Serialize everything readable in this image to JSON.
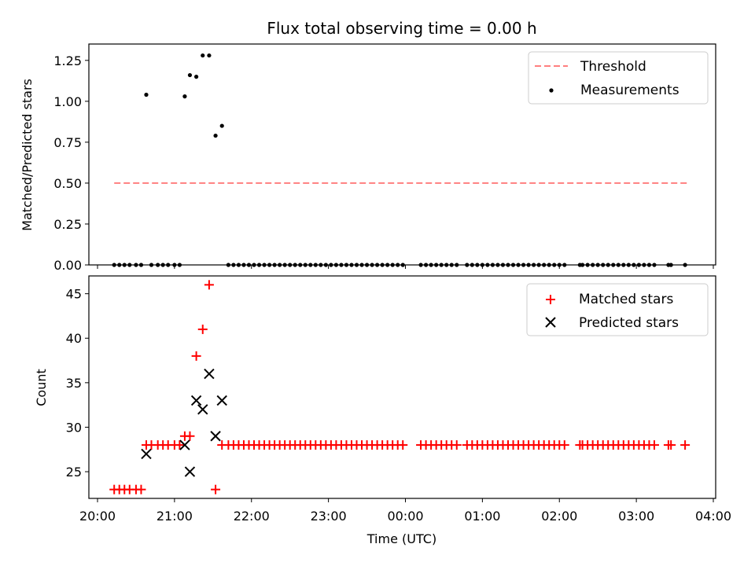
{
  "chart_data": [
    {
      "type": "scatter",
      "title": "Flux total observing time = 0.00 h",
      "xlabel": "",
      "ylabel": "Matched/Predicted stars",
      "xlim": [
        "20:00",
        "04:00"
      ],
      "ylim": [
        0,
        1.35
      ],
      "yticks": [
        "0.00",
        "0.25",
        "0.50",
        "0.75",
        "1.00",
        "1.25"
      ],
      "legend": "top-right",
      "grid": false,
      "series": [
        {
          "name": "Threshold",
          "style": "dashed-line",
          "color": "#ff7f7f",
          "points": [
            {
              "x": "20:13",
              "y": 0.5
            },
            {
              "x": "03:40",
              "y": 0.5
            }
          ]
        },
        {
          "name": "Measurements",
          "style": "dot",
          "color": "#000000",
          "points": [
            {
              "x": "20:13",
              "y": 0
            },
            {
              "x": "20:17",
              "y": 0
            },
            {
              "x": "20:21",
              "y": 0
            },
            {
              "x": "20:25",
              "y": 0
            },
            {
              "x": "20:30",
              "y": 0
            },
            {
              "x": "20:34",
              "y": 0
            },
            {
              "x": "20:38",
              "y": 1.04
            },
            {
              "x": "20:42",
              "y": 0
            },
            {
              "x": "20:47",
              "y": 0
            },
            {
              "x": "20:51",
              "y": 0
            },
            {
              "x": "20:55",
              "y": 0
            },
            {
              "x": "21:00",
              "y": 0
            },
            {
              "x": "21:04",
              "y": 0
            },
            {
              "x": "21:08",
              "y": 1.03
            },
            {
              "x": "21:12",
              "y": 1.16
            },
            {
              "x": "21:17",
              "y": 1.15
            },
            {
              "x": "21:22",
              "y": 1.28
            },
            {
              "x": "21:27",
              "y": 1.28
            },
            {
              "x": "21:32",
              "y": 0.79
            },
            {
              "x": "21:37",
              "y": 0.85
            },
            {
              "x": "21:42",
              "y": 0
            },
            {
              "x": "21:46",
              "y": 0
            },
            {
              "x": "21:50",
              "y": 0
            },
            {
              "x": "21:54",
              "y": 0
            },
            {
              "x": "21:58",
              "y": 0
            },
            {
              "x": "22:02",
              "y": 0
            },
            {
              "x": "22:06",
              "y": 0
            },
            {
              "x": "22:10",
              "y": 0
            },
            {
              "x": "22:14",
              "y": 0
            },
            {
              "x": "22:18",
              "y": 0
            },
            {
              "x": "22:22",
              "y": 0
            },
            {
              "x": "22:26",
              "y": 0
            },
            {
              "x": "22:30",
              "y": 0
            },
            {
              "x": "22:34",
              "y": 0
            },
            {
              "x": "22:38",
              "y": 0
            },
            {
              "x": "22:42",
              "y": 0
            },
            {
              "x": "22:46",
              "y": 0
            },
            {
              "x": "22:50",
              "y": 0
            },
            {
              "x": "22:54",
              "y": 0
            },
            {
              "x": "22:58",
              "y": 0
            },
            {
              "x": "23:02",
              "y": 0
            },
            {
              "x": "23:06",
              "y": 0
            },
            {
              "x": "23:10",
              "y": 0
            },
            {
              "x": "23:14",
              "y": 0
            },
            {
              "x": "23:18",
              "y": 0
            },
            {
              "x": "23:22",
              "y": 0
            },
            {
              "x": "23:26",
              "y": 0
            },
            {
              "x": "23:30",
              "y": 0
            },
            {
              "x": "23:34",
              "y": 0
            },
            {
              "x": "23:38",
              "y": 0
            },
            {
              "x": "23:42",
              "y": 0
            },
            {
              "x": "23:46",
              "y": 0
            },
            {
              "x": "23:50",
              "y": 0
            },
            {
              "x": "23:54",
              "y": 0
            },
            {
              "x": "23:58",
              "y": 0
            },
            {
              "x": "00:12",
              "y": 0
            },
            {
              "x": "00:16",
              "y": 0
            },
            {
              "x": "00:20",
              "y": 0
            },
            {
              "x": "00:24",
              "y": 0
            },
            {
              "x": "00:28",
              "y": 0
            },
            {
              "x": "00:32",
              "y": 0
            },
            {
              "x": "00:36",
              "y": 0
            },
            {
              "x": "00:40",
              "y": 0
            },
            {
              "x": "00:48",
              "y": 0
            },
            {
              "x": "00:52",
              "y": 0
            },
            {
              "x": "00:56",
              "y": 0
            },
            {
              "x": "01:00",
              "y": 0
            },
            {
              "x": "01:04",
              "y": 0
            },
            {
              "x": "01:08",
              "y": 0
            },
            {
              "x": "01:12",
              "y": 0
            },
            {
              "x": "01:16",
              "y": 0
            },
            {
              "x": "01:20",
              "y": 0
            },
            {
              "x": "01:24",
              "y": 0
            },
            {
              "x": "01:28",
              "y": 0
            },
            {
              "x": "01:32",
              "y": 0
            },
            {
              "x": "01:36",
              "y": 0
            },
            {
              "x": "01:40",
              "y": 0
            },
            {
              "x": "01:44",
              "y": 0
            },
            {
              "x": "01:48",
              "y": 0
            },
            {
              "x": "01:52",
              "y": 0
            },
            {
              "x": "01:56",
              "y": 0
            },
            {
              "x": "02:00",
              "y": 0
            },
            {
              "x": "02:04",
              "y": 0
            },
            {
              "x": "02:16",
              "y": 0
            },
            {
              "x": "02:18",
              "y": 0
            },
            {
              "x": "02:22",
              "y": 0
            },
            {
              "x": "02:26",
              "y": 0
            },
            {
              "x": "02:30",
              "y": 0
            },
            {
              "x": "02:34",
              "y": 0
            },
            {
              "x": "02:38",
              "y": 0
            },
            {
              "x": "02:42",
              "y": 0
            },
            {
              "x": "02:46",
              "y": 0
            },
            {
              "x": "02:50",
              "y": 0
            },
            {
              "x": "02:54",
              "y": 0
            },
            {
              "x": "02:58",
              "y": 0
            },
            {
              "x": "03:02",
              "y": 0
            },
            {
              "x": "03:06",
              "y": 0
            },
            {
              "x": "03:10",
              "y": 0
            },
            {
              "x": "03:14",
              "y": 0
            },
            {
              "x": "03:25",
              "y": 0
            },
            {
              "x": "03:27",
              "y": 0
            },
            {
              "x": "03:38",
              "y": 0
            }
          ]
        }
      ]
    },
    {
      "type": "scatter",
      "title": "",
      "xlabel": "Time (UTC)",
      "ylabel": "Count",
      "xlim": [
        "20:00",
        "04:00"
      ],
      "ylim": [
        22,
        47
      ],
      "xticks": [
        "20:00",
        "21:00",
        "22:00",
        "23:00",
        "00:00",
        "01:00",
        "02:00",
        "03:00",
        "04:00"
      ],
      "yticks": [
        "25",
        "30",
        "35",
        "40",
        "45"
      ],
      "legend": "top-right",
      "grid": false,
      "series": [
        {
          "name": "Matched stars",
          "marker": "plus",
          "color": "#ff0000",
          "points": [
            {
              "x": "20:13",
              "y": 23
            },
            {
              "x": "20:17",
              "y": 23
            },
            {
              "x": "20:21",
              "y": 23
            },
            {
              "x": "20:25",
              "y": 23
            },
            {
              "x": "20:30",
              "y": 23
            },
            {
              "x": "20:34",
              "y": 23
            },
            {
              "x": "20:38",
              "y": 28
            },
            {
              "x": "20:42",
              "y": 28
            },
            {
              "x": "20:47",
              "y": 28
            },
            {
              "x": "20:51",
              "y": 28
            },
            {
              "x": "20:55",
              "y": 28
            },
            {
              "x": "21:00",
              "y": 28
            },
            {
              "x": "21:04",
              "y": 28
            },
            {
              "x": "21:08",
              "y": 29
            },
            {
              "x": "21:12",
              "y": 29
            },
            {
              "x": "21:17",
              "y": 38
            },
            {
              "x": "21:22",
              "y": 41
            },
            {
              "x": "21:27",
              "y": 46
            },
            {
              "x": "21:32",
              "y": 23
            },
            {
              "x": "21:37",
              "y": 28
            },
            {
              "x": "21:42",
              "y": 28
            },
            {
              "x": "21:46",
              "y": 28
            },
            {
              "x": "21:50",
              "y": 28
            },
            {
              "x": "21:54",
              "y": 28
            },
            {
              "x": "21:58",
              "y": 28
            },
            {
              "x": "22:02",
              "y": 28
            },
            {
              "x": "22:06",
              "y": 28
            },
            {
              "x": "22:10",
              "y": 28
            },
            {
              "x": "22:14",
              "y": 28
            },
            {
              "x": "22:18",
              "y": 28
            },
            {
              "x": "22:22",
              "y": 28
            },
            {
              "x": "22:26",
              "y": 28
            },
            {
              "x": "22:30",
              "y": 28
            },
            {
              "x": "22:34",
              "y": 28
            },
            {
              "x": "22:38",
              "y": 28
            },
            {
              "x": "22:42",
              "y": 28
            },
            {
              "x": "22:46",
              "y": 28
            },
            {
              "x": "22:50",
              "y": 28
            },
            {
              "x": "22:54",
              "y": 28
            },
            {
              "x": "22:58",
              "y": 28
            },
            {
              "x": "23:02",
              "y": 28
            },
            {
              "x": "23:06",
              "y": 28
            },
            {
              "x": "23:10",
              "y": 28
            },
            {
              "x": "23:14",
              "y": 28
            },
            {
              "x": "23:18",
              "y": 28
            },
            {
              "x": "23:22",
              "y": 28
            },
            {
              "x": "23:26",
              "y": 28
            },
            {
              "x": "23:30",
              "y": 28
            },
            {
              "x": "23:34",
              "y": 28
            },
            {
              "x": "23:38",
              "y": 28
            },
            {
              "x": "23:42",
              "y": 28
            },
            {
              "x": "23:46",
              "y": 28
            },
            {
              "x": "23:50",
              "y": 28
            },
            {
              "x": "23:54",
              "y": 28
            },
            {
              "x": "23:58",
              "y": 28
            },
            {
              "x": "00:12",
              "y": 28
            },
            {
              "x": "00:16",
              "y": 28
            },
            {
              "x": "00:20",
              "y": 28
            },
            {
              "x": "00:24",
              "y": 28
            },
            {
              "x": "00:28",
              "y": 28
            },
            {
              "x": "00:32",
              "y": 28
            },
            {
              "x": "00:36",
              "y": 28
            },
            {
              "x": "00:40",
              "y": 28
            },
            {
              "x": "00:48",
              "y": 28
            },
            {
              "x": "00:52",
              "y": 28
            },
            {
              "x": "00:56",
              "y": 28
            },
            {
              "x": "01:00",
              "y": 28
            },
            {
              "x": "01:04",
              "y": 28
            },
            {
              "x": "01:08",
              "y": 28
            },
            {
              "x": "01:12",
              "y": 28
            },
            {
              "x": "01:16",
              "y": 28
            },
            {
              "x": "01:20",
              "y": 28
            },
            {
              "x": "01:24",
              "y": 28
            },
            {
              "x": "01:28",
              "y": 28
            },
            {
              "x": "01:32",
              "y": 28
            },
            {
              "x": "01:36",
              "y": 28
            },
            {
              "x": "01:40",
              "y": 28
            },
            {
              "x": "01:44",
              "y": 28
            },
            {
              "x": "01:48",
              "y": 28
            },
            {
              "x": "01:52",
              "y": 28
            },
            {
              "x": "01:56",
              "y": 28
            },
            {
              "x": "02:00",
              "y": 28
            },
            {
              "x": "02:04",
              "y": 28
            },
            {
              "x": "02:16",
              "y": 28
            },
            {
              "x": "02:18",
              "y": 28
            },
            {
              "x": "02:22",
              "y": 28
            },
            {
              "x": "02:26",
              "y": 28
            },
            {
              "x": "02:30",
              "y": 28
            },
            {
              "x": "02:34",
              "y": 28
            },
            {
              "x": "02:38",
              "y": 28
            },
            {
              "x": "02:42",
              "y": 28
            },
            {
              "x": "02:46",
              "y": 28
            },
            {
              "x": "02:50",
              "y": 28
            },
            {
              "x": "02:54",
              "y": 28
            },
            {
              "x": "02:58",
              "y": 28
            },
            {
              "x": "03:02",
              "y": 28
            },
            {
              "x": "03:06",
              "y": 28
            },
            {
              "x": "03:10",
              "y": 28
            },
            {
              "x": "03:14",
              "y": 28
            },
            {
              "x": "03:25",
              "y": 28
            },
            {
              "x": "03:27",
              "y": 28
            },
            {
              "x": "03:38",
              "y": 28
            }
          ]
        },
        {
          "name": "Predicted stars",
          "marker": "x",
          "color": "#000000",
          "points": [
            {
              "x": "20:38",
              "y": 27
            },
            {
              "x": "21:08",
              "y": 28
            },
            {
              "x": "21:12",
              "y": 25
            },
            {
              "x": "21:17",
              "y": 33
            },
            {
              "x": "21:22",
              "y": 32
            },
            {
              "x": "21:27",
              "y": 36
            },
            {
              "x": "21:32",
              "y": 29
            },
            {
              "x": "21:37",
              "y": 33
            }
          ]
        }
      ]
    }
  ]
}
